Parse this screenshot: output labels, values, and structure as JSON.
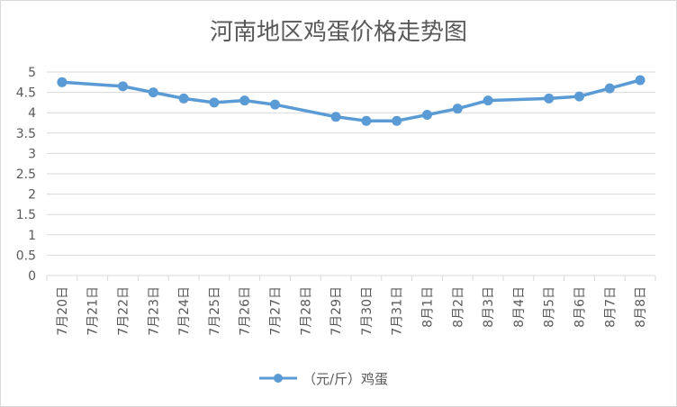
{
  "chart_data": {
    "type": "line",
    "title": "河南地区鸡蛋价格走势图",
    "categories": [
      "7月20日",
      "7月21日",
      "7月22日",
      "7月23日",
      "7月24日",
      "7月25日",
      "7月26日",
      "7月27日",
      "7月28日",
      "7月29日",
      "7月30日",
      "7月31日",
      "8月1日",
      "8月2日",
      "8月3日",
      "8月4日",
      "8月5日",
      "8月6日",
      "8月7日",
      "8月8日"
    ],
    "series": [
      {
        "name": "（元/斤）鸡蛋",
        "color": "#5b9bd5",
        "values": [
          4.75,
          null,
          4.65,
          4.5,
          4.35,
          4.25,
          4.3,
          4.2,
          null,
          3.9,
          3.8,
          3.8,
          3.95,
          4.1,
          4.3,
          null,
          4.35,
          4.4,
          4.6,
          4.8
        ]
      }
    ],
    "ylim": [
      0,
      5
    ],
    "yticks": [
      "0",
      "0.5",
      "1",
      "1.5",
      "2",
      "2.5",
      "3",
      "3.5",
      "4",
      "4.5",
      "5"
    ],
    "grid": true,
    "legend": "bottom"
  }
}
